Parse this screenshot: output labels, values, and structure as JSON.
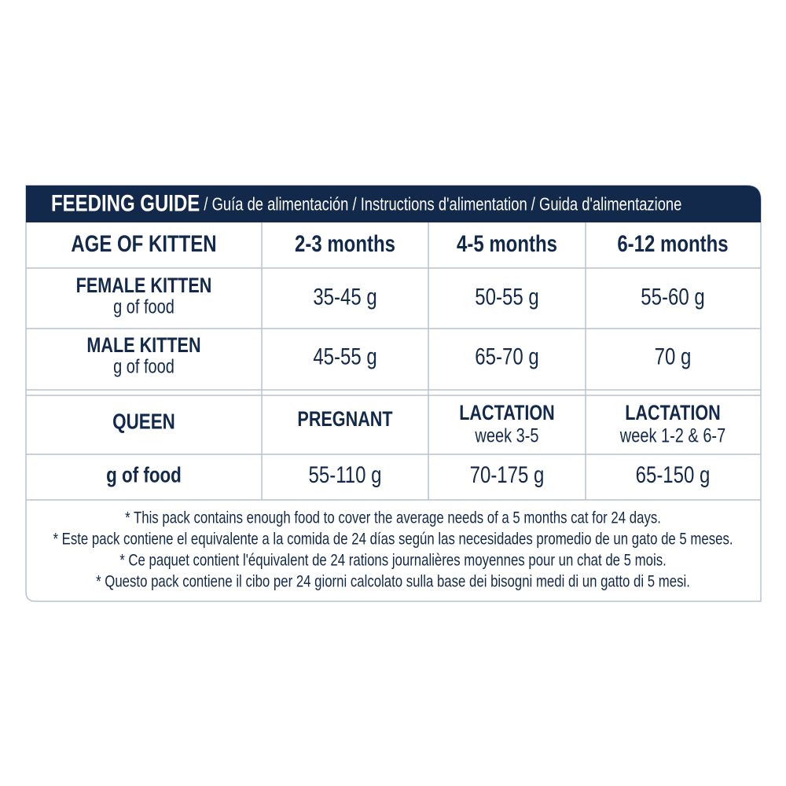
{
  "header": {
    "title": "FEEDING GUIDE",
    "subtitle": " / Guía de alimentación / Instructions d'alimentation / Guida d'alimentazione"
  },
  "kitten_table": {
    "columns": [
      "AGE OF KITTEN",
      "2-3 months",
      "4-5 months",
      "6-12 months"
    ],
    "rows": [
      {
        "label": "FEMALE KITTEN",
        "unit": "g of food",
        "values": [
          "35-45 g",
          "50-55 g",
          "55-60 g"
        ]
      },
      {
        "label": "MALE KITTEN",
        "unit": "g of food",
        "values": [
          "45-55 g",
          "65-70 g",
          "70 g"
        ]
      }
    ]
  },
  "queen_table": {
    "label": "QUEEN",
    "stages": [
      {
        "name": "PREGNANT"
      },
      {
        "name": "LACTATION",
        "detail": "week 3-5"
      },
      {
        "name": "LACTATION",
        "detail": "week 1-2 & 6-7"
      }
    ],
    "row_label": "g of food",
    "values": [
      "55-110 g",
      "70-175 g",
      "65-150 g"
    ]
  },
  "footnotes": [
    "* This pack contains enough food to cover the average needs of a 5 months cat for 24 days.",
    "* Este pack contiene el equivalente a la comida de 24 días según las necesidades promedio de un gato de 5 meses.",
    "* Ce paquet contient l'équivalent de 24 rations journalières moyennes pour un chat de 5 mois.",
    "* Questo pack contiene il cibo per 24 giorni calcolato sulla base dei bisogni medi di un gatto di 5 mesi."
  ]
}
